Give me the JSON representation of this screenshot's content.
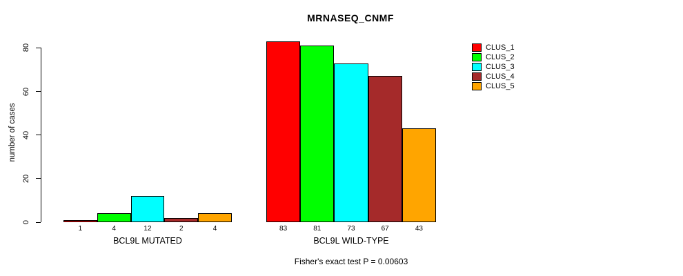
{
  "chart_data": {
    "type": "bar",
    "title": "MRNASEQ_CNMF",
    "ylabel": "number of cases",
    "xlabel": "",
    "annotation": "Fisher's exact test P = 0.00603",
    "yticks": [
      0,
      20,
      40,
      60,
      80
    ],
    "ylim": [
      0,
      87
    ],
    "grid": false,
    "legend_position": "top-right",
    "legend": [
      "CLUS_1",
      "CLUS_2",
      "CLUS_3",
      "CLUS_4",
      "CLUS_5"
    ],
    "colors": [
      "#FF0000",
      "#00FF00",
      "#00FFFF",
      "#A52A2A",
      "#FFA500"
    ],
    "groups": [
      {
        "label": "BCL9L MUTATED",
        "values": [
          1,
          4,
          12,
          2,
          4
        ]
      },
      {
        "label": "BCL9L WILD-TYPE",
        "values": [
          83,
          81,
          73,
          67,
          43
        ]
      }
    ]
  }
}
